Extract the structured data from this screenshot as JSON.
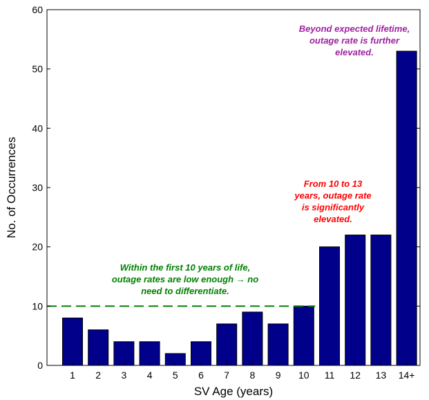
{
  "chart_data": {
    "type": "bar",
    "categories": [
      "1",
      "2",
      "3",
      "4",
      "5",
      "6",
      "7",
      "8",
      "9",
      "10",
      "11",
      "12",
      "13",
      "14+"
    ],
    "values": [
      8,
      6,
      4,
      4,
      2,
      4,
      7,
      9,
      7,
      10,
      20,
      22,
      22,
      53
    ],
    "xlabel": "SV Age (years)",
    "ylabel": "No. of Occurrences",
    "ylim": [
      0,
      60
    ],
    "yticks": [
      0,
      10,
      20,
      30,
      40,
      50,
      60
    ],
    "grid": false,
    "bar_color": "#00008b",
    "reference_line": {
      "y": 10,
      "color": "#008000",
      "style": "dashed"
    },
    "annotations": [
      {
        "id": "green-note",
        "color": "#008000",
        "lines": [
          "Within the first 10 years of life,",
          "outage rates are low enough → no",
          "need to differentiate."
        ]
      },
      {
        "id": "red-note",
        "color": "#ff0000",
        "lines": [
          "From 10 to 13",
          "years, outage rate",
          "is significantly",
          "elevated."
        ]
      },
      {
        "id": "purple-note",
        "color": "#a020a0",
        "lines": [
          "Beyond expected lifetime,",
          "outage rate is further",
          "elevated."
        ]
      }
    ]
  }
}
